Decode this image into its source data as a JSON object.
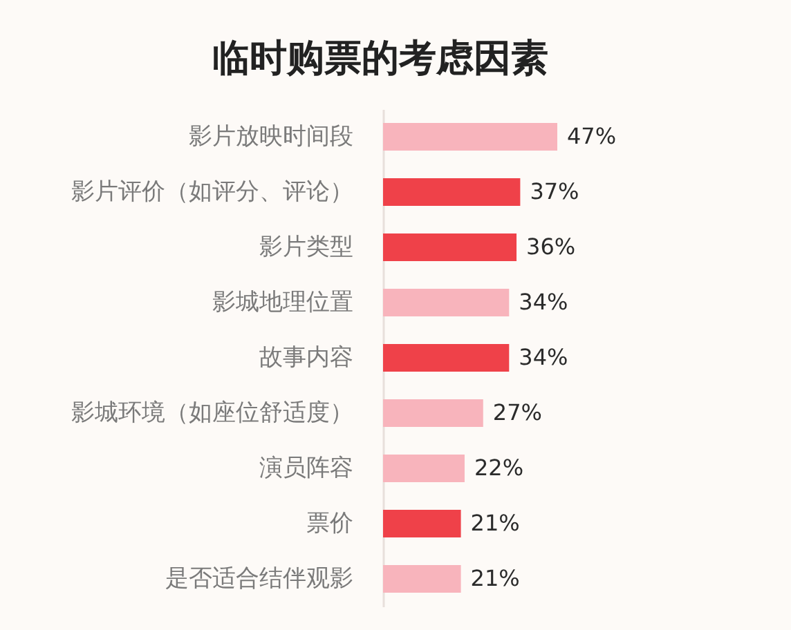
{
  "chart_data": {
    "type": "bar",
    "orientation": "horizontal",
    "title": "临时购票的考虑因素",
    "categories": [
      "影片放映时间段",
      "影片评价（如评分、评论）",
      "影片类型",
      "影城地理位置",
      "故事内容",
      "影城环境（如座位舒适度）",
      "演员阵容",
      "票价",
      "是否适合结伴观影"
    ],
    "values": [
      47,
      37,
      36,
      34,
      34,
      27,
      22,
      21,
      21
    ],
    "colors": [
      "#f8b4bc",
      "#ef4149",
      "#ef4149",
      "#f8b4bc",
      "#ef4149",
      "#f8b4bc",
      "#f8b4bc",
      "#ef4149",
      "#f8b4bc"
    ],
    "value_labels": [
      "47%",
      "37%",
      "36%",
      "34%",
      "34%",
      "27%",
      "22%",
      "21%",
      "21%"
    ],
    "tick_labels": "y"
  }
}
